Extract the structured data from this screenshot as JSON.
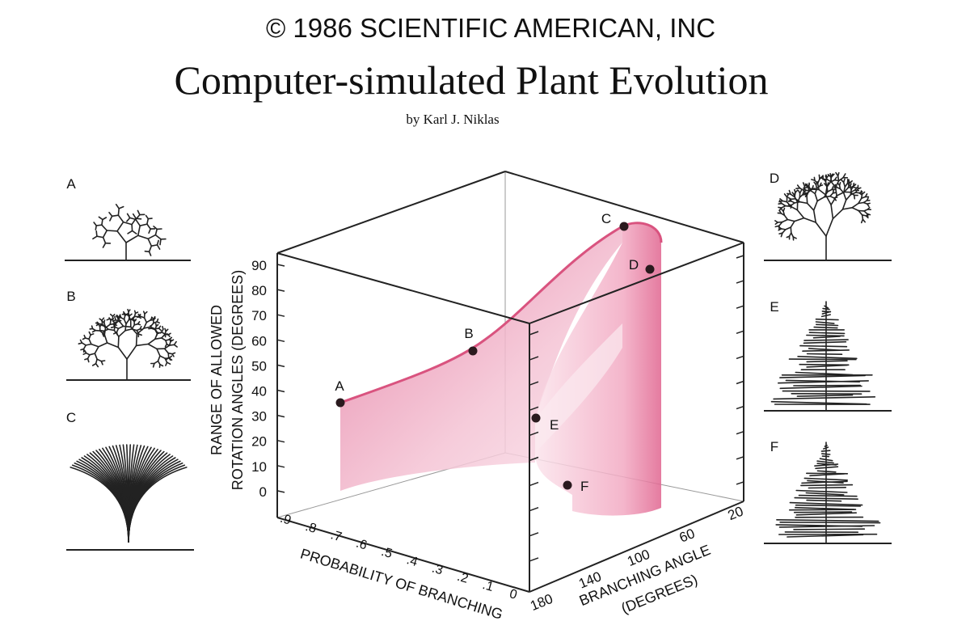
{
  "header": {
    "copyright": "© 1986 SCIENTIFIC AMERICAN, INC",
    "title": "Computer-simulated Plant Evolution",
    "byline": "by Karl J. Niklas"
  },
  "panels": [
    {
      "label": "A"
    },
    {
      "label": "B"
    },
    {
      "label": "C"
    },
    {
      "label": "D"
    },
    {
      "label": "E"
    },
    {
      "label": "F"
    }
  ],
  "plot": {
    "z_axis_title": [
      "RANGE OF ALLOWED",
      "ROTATION ANGLES (DEGREES)"
    ],
    "z_ticks": [
      "90",
      "80",
      "70",
      "60",
      "50",
      "40",
      "30",
      "20",
      "10",
      "0"
    ],
    "x_axis_title": "PROBABILITY OF BRANCHING",
    "x_ticks": [
      ".9",
      ".8",
      ".7",
      ".6",
      ".5",
      ".4",
      ".3",
      ".2",
      ".1",
      "0"
    ],
    "y_axis_title": [
      "BRANCHING ANGLE",
      "(DEGREES)"
    ],
    "y_ticks": [
      "180",
      "140",
      "100",
      "60",
      "20"
    ],
    "points": [
      {
        "label": "A"
      },
      {
        "label": "B"
      },
      {
        "label": "C"
      },
      {
        "label": "D"
      },
      {
        "label": "E"
      },
      {
        "label": "F"
      }
    ]
  }
}
